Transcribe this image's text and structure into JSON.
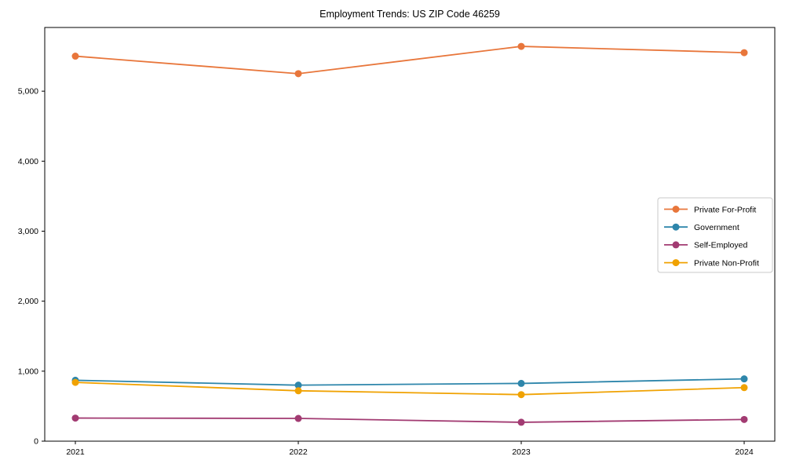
{
  "chart_data": {
    "type": "line",
    "title": "Employment Trends: US ZIP Code 46259",
    "x": [
      "2021",
      "2022",
      "2023",
      "2024"
    ],
    "series": [
      {
        "name": "Private For-Profit",
        "color": "#E8763B",
        "values": [
          5500,
          5250,
          5640,
          5550
        ]
      },
      {
        "name": "Government",
        "color": "#2E86AB",
        "values": [
          870,
          800,
          825,
          890
        ]
      },
      {
        "name": "Self-Employed",
        "color": "#A23B72",
        "values": [
          330,
          325,
          270,
          310
        ]
      },
      {
        "name": "Private Non-Profit",
        "color": "#F0A202",
        "values": [
          840,
          720,
          665,
          765
        ]
      }
    ],
    "xlabel": "",
    "ylabel": "",
    "ylim": [
      0,
      5910
    ],
    "yticks": [
      0,
      1000,
      2000,
      3000,
      4000,
      5000
    ],
    "ytick_labels": [
      "0",
      "1,000",
      "2,000",
      "3,000",
      "4,000",
      "5,000"
    ],
    "grid": false,
    "legend_position": "center-right",
    "marker": "circle",
    "background_color": "#ffffff",
    "axis_color": "#000000",
    "legend_border_color": "#c8c8c8"
  }
}
